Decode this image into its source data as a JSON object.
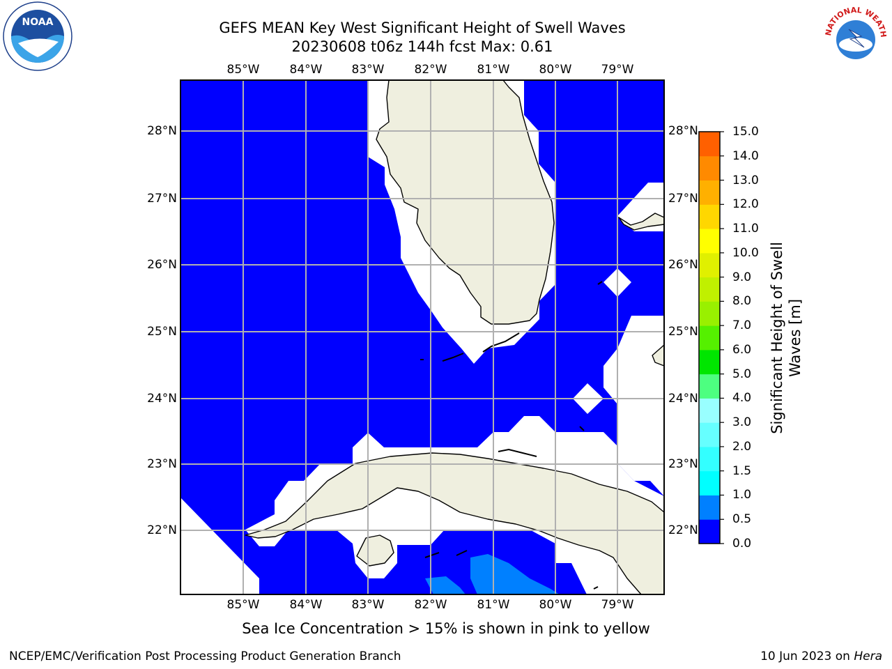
{
  "header": {
    "title_line1": "GEFS MEAN Key West Significant Height of Swell Waves",
    "title_line2": "20230608 t06z 144h fcst   Max: 0.61"
  },
  "logos": {
    "left": "noaa-logo",
    "left_text": "NOAA",
    "right": "nws-logo",
    "right_text": "NATIONAL WEATHER SERVICE"
  },
  "map": {
    "lon_labels": [
      "85°W",
      "84°W",
      "83°W",
      "82°W",
      "81°W",
      "80°W",
      "79°W"
    ],
    "lat_labels": [
      "28°N",
      "27°N",
      "26°N",
      "25°N",
      "24°N",
      "23°N",
      "22°N"
    ],
    "extent": {
      "lon_min": -86.0,
      "lon_max": -78.3,
      "lat_min": 21.0,
      "lat_max": 28.8
    },
    "ocean_color": "#0000ff",
    "land_color": "#efefdf",
    "swell_0_5_color": "#0080ff",
    "no_data_color": "#ffffff",
    "grid": true
  },
  "colorbar": {
    "label": "Significant Height of Swell Waves [m]",
    "ticks": [
      "0.0",
      "0.5",
      "1.0",
      "1.5",
      "2.0",
      "3.0",
      "4.0",
      "5.0",
      "6.0",
      "7.0",
      "8.0",
      "9.0",
      "10.0",
      "11.0",
      "12.0",
      "13.0",
      "14.0",
      "15.0"
    ],
    "colors": [
      "#0000ff",
      "#0080ff",
      "#00ffff",
      "#33ffff",
      "#66ffff",
      "#99ffff",
      "#4dff80",
      "#00e600",
      "#55f000",
      "#99f000",
      "#c0f000",
      "#e0f000",
      "#ffff00",
      "#ffd700",
      "#ffb000",
      "#ff8a00",
      "#ff6000",
      "#ff3000",
      "#ff0000"
    ]
  },
  "notes": {
    "ice_note": "Sea Ice Concentration > 15% is shown in pink to yellow"
  },
  "footer": {
    "left": "NCEP/EMC/Verification Post Processing Product Generation Branch",
    "right_date": "10 Jun 2023 on ",
    "right_host": "Hera"
  }
}
